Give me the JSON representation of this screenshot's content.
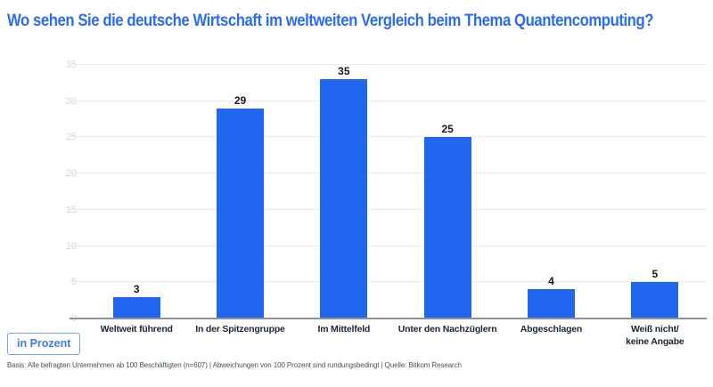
{
  "header": {
    "title": "Wo sehen Sie die deutsche Wirtschaft im weltweiten Vergleich beim Thema Quantencomputing?"
  },
  "badge": {
    "label": "in Prozent"
  },
  "footer": {
    "text": "Basis: Alle befragten Unternehmen ab 100 Beschäftigten (n=607) | Abweichungen von 100 Prozent sind rundungsbedingt | Quelle: Bitkom Research"
  },
  "colors": {
    "bar_blue": "#2166ee",
    "title_blue": "#2a6cf4",
    "badge_blue": "#3d7bf4",
    "axis_gray": "#8d9399",
    "gridline_gray": "#ececec",
    "tick_gray": "#d2d5d8"
  },
  "chart_data": {
    "type": "bar",
    "title": "Wo sehen Sie die deutsche Wirtschaft im weltweiten Vergleich beim Thema Quantencomputing?",
    "unit": "Prozent",
    "categories": [
      "Weltweit führend",
      "In der Spitzengruppe",
      "Im Mittelfeld",
      "Unter den Nachzüglern",
      "Abgeschlagen",
      "Weiß nicht/\nkeine Angabe"
    ],
    "values": [
      3,
      29,
      35,
      25,
      4,
      5
    ],
    "xlabel": "",
    "ylabel": "",
    "ylim": [
      0,
      35
    ],
    "y_ticks": [
      0,
      5,
      10,
      15,
      20,
      25,
      30,
      35
    ],
    "grid": "horizontal",
    "legend": "none",
    "bar_color": "#2166ee"
  }
}
